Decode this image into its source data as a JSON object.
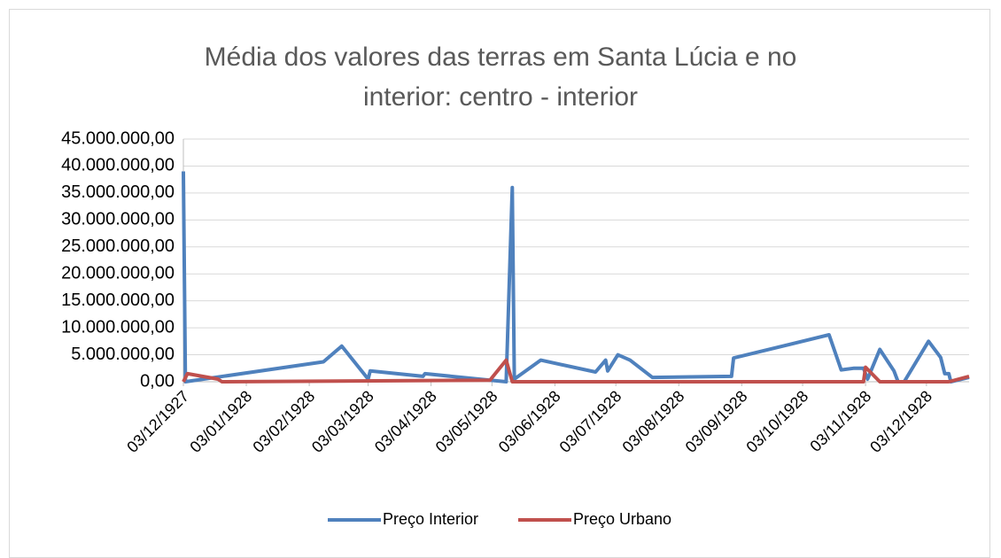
{
  "chart_data": {
    "type": "line",
    "title": "Média dos valores das terras em Santa Lúcia e no interior: centro - interior",
    "xlim": [
      "1927-12-03",
      "1928-12-24"
    ],
    "xticks": [
      {
        "value": "1927-12-03",
        "label": "03/12/1927"
      },
      {
        "value": "1928-01-03",
        "label": "03/01/1928"
      },
      {
        "value": "1928-02-03",
        "label": "03/02/1928"
      },
      {
        "value": "1928-03-03",
        "label": "03/03/1928"
      },
      {
        "value": "1928-04-03",
        "label": "03/04/1928"
      },
      {
        "value": "1928-05-03",
        "label": "03/05/1928"
      },
      {
        "value": "1928-06-03",
        "label": "03/06/1928"
      },
      {
        "value": "1928-07-03",
        "label": "03/07/1928"
      },
      {
        "value": "1928-08-03",
        "label": "03/08/1928"
      },
      {
        "value": "1928-09-03",
        "label": "03/09/1928"
      },
      {
        "value": "1928-10-03",
        "label": "03/10/1928"
      },
      {
        "value": "1928-11-03",
        "label": "03/11/1928"
      },
      {
        "value": "1928-12-03",
        "label": "03/12/1928"
      }
    ],
    "ylim": [
      0,
      45000000
    ],
    "yticks": [
      {
        "value": 0,
        "label": "0,00"
      },
      {
        "value": 5000000,
        "label": "5.000.000,00"
      },
      {
        "value": 10000000,
        "label": "10.000.000,00"
      },
      {
        "value": 15000000,
        "label": "15.000.000,00"
      },
      {
        "value": 20000000,
        "label": "20.000.000,00"
      },
      {
        "value": 25000000,
        "label": "25.000.000,00"
      },
      {
        "value": 30000000,
        "label": "30.000.000,00"
      },
      {
        "value": 35000000,
        "label": "35.000.000,00"
      },
      {
        "value": 40000000,
        "label": "40.000.000,00"
      },
      {
        "value": 45000000,
        "label": "45.000.000,00"
      }
    ],
    "grid": true,
    "legend": "bottom",
    "series": [
      {
        "name": "Preço Interior",
        "color": "#4f81bd",
        "x": [
          "1927-12-03",
          "1927-12-04",
          "1928-02-10",
          "1928-02-19",
          "1928-03-03",
          "1928-03-04",
          "1928-03-30",
          "1928-03-31",
          "1928-05-02",
          "1928-05-10",
          "1928-05-13",
          "1928-05-14",
          "1928-05-27",
          "1928-06-23",
          "1928-06-28",
          "1928-06-29",
          "1928-07-04",
          "1928-07-10",
          "1928-07-21",
          "1928-08-29",
          "1928-08-30",
          "1928-10-16",
          "1928-10-22",
          "1928-10-28",
          "1928-11-02",
          "1928-11-04",
          "1928-11-10",
          "1928-11-17",
          "1928-11-19",
          "1928-11-22",
          "1928-12-04",
          "1928-12-10",
          "1928-12-12",
          "1928-12-14",
          "1928-12-15",
          "1928-12-24"
        ],
        "values": [
          39000000,
          0,
          3700000,
          6600000,
          500000,
          2000000,
          1000000,
          1500000,
          300000,
          0,
          36000000,
          500000,
          4000000,
          1800000,
          4000000,
          2000000,
          5000000,
          4000000,
          800000,
          1000000,
          4400000,
          8700000,
          2200000,
          2500000,
          2500000,
          500000,
          6000000,
          2000000,
          0,
          0,
          7500000,
          4500000,
          1500000,
          1500000,
          0,
          800000
        ]
      },
      {
        "name": "Preço Urbano",
        "color": "#c0504d",
        "x": [
          "1927-12-03",
          "1927-12-05",
          "1927-12-20",
          "1927-12-22",
          "1928-05-02",
          "1928-05-10",
          "1928-05-13",
          "1928-11-02",
          "1928-11-03",
          "1928-11-10",
          "1928-12-14",
          "1928-12-24"
        ],
        "values": [
          0,
          1500000,
          500000,
          0,
          300000,
          4000000,
          0,
          0,
          2700000,
          0,
          0,
          1000000
        ]
      }
    ]
  }
}
